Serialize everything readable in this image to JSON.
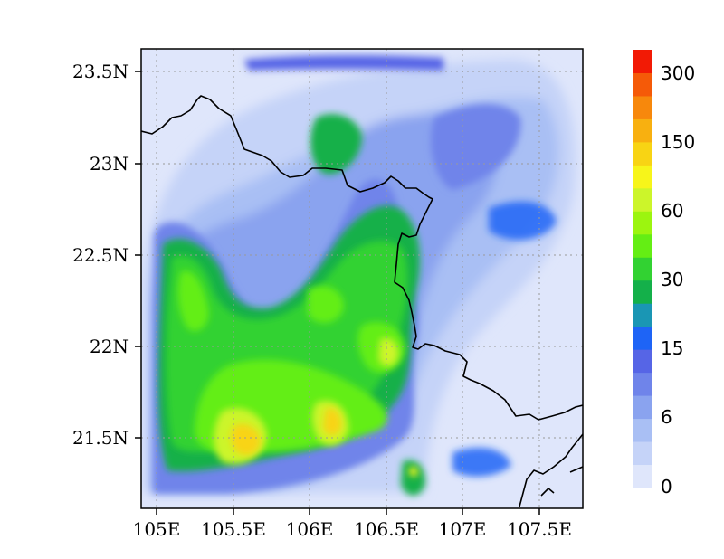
{
  "map": {
    "x_ticks": [
      "105E",
      "105.5E",
      "106E",
      "106.5E",
      "107E",
      "107.5E"
    ],
    "y_ticks": [
      "23.5N",
      "23N",
      "22.5N",
      "22N",
      "21.5N"
    ],
    "x_tick_values": [
      105,
      105.5,
      106,
      106.5,
      107,
      107.5
    ],
    "y_tick_values": [
      23.5,
      23.0,
      22.5,
      22.0,
      21.5
    ],
    "lon_range": [
      104.9,
      107.8
    ],
    "lat_range": [
      21.1,
      23.62
    ],
    "grid": "dotted"
  },
  "colorbar": {
    "labels": [
      "300",
      "150",
      "60",
      "30",
      "15",
      "6",
      "0"
    ],
    "colors": [
      "#dfe6fb",
      "#c5d3f8",
      "#a9bff4",
      "#8aa3ef",
      "#6f84ea",
      "#5665e6",
      "#1e64f6",
      "#1a96b4",
      "#14b04a",
      "#32d232",
      "#64ee14",
      "#9cf50f",
      "#ccf52a",
      "#f7f51a",
      "#f8d414",
      "#f8b010",
      "#f7880c",
      "#f55a08",
      "#f21a05"
    ]
  },
  "icons": {
    "coastline": "border-line-icon"
  }
}
